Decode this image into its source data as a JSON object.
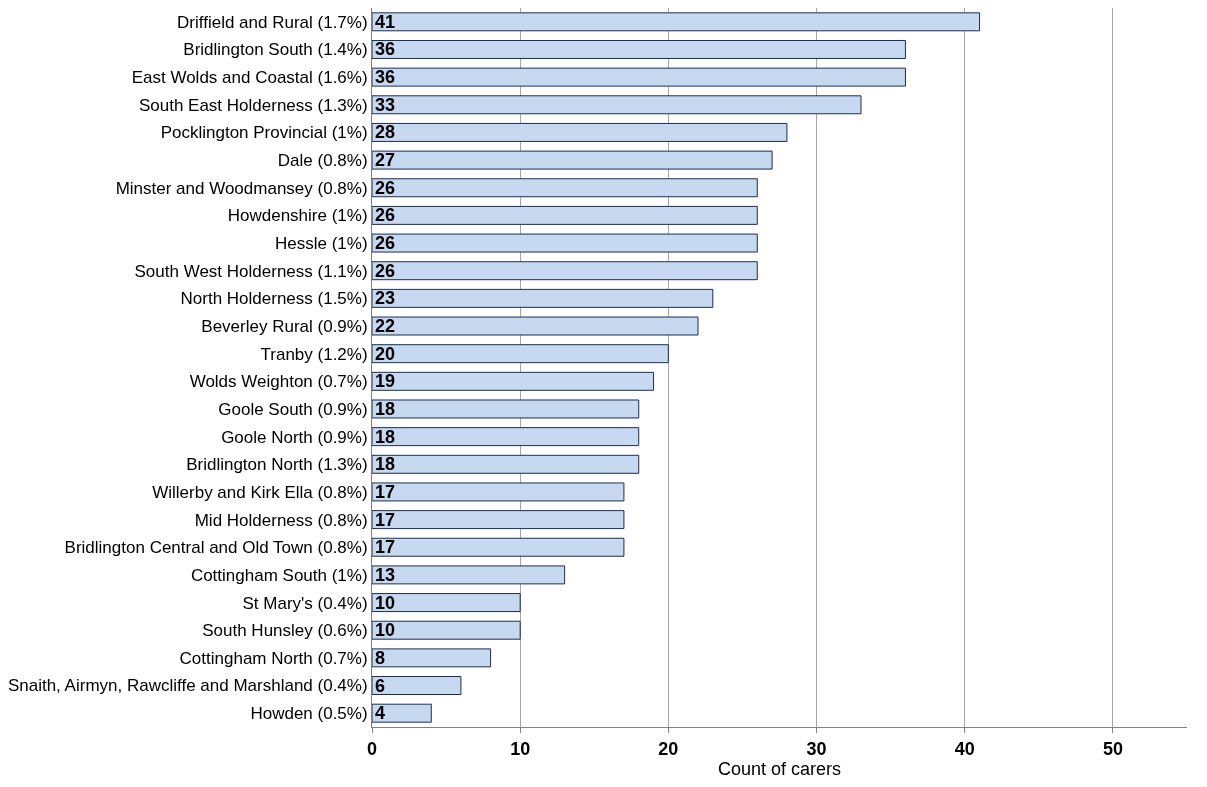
{
  "chart_data": {
    "type": "bar",
    "orientation": "horizontal",
    "xlabel": "Count of carers",
    "categories": [
      "Driffield and Rural (1.7%)",
      "Bridlington South (1.4%)",
      "East Wolds and Coastal (1.6%)",
      "South East Holderness (1.3%)",
      "Pocklington Provincial (1%)",
      "Dale (0.8%)",
      "Minster and Woodmansey (0.8%)",
      "Howdenshire (1%)",
      "Hessle (1%)",
      "South West Holderness (1.1%)",
      "North Holderness (1.5%)",
      "Beverley Rural (0.9%)",
      "Tranby (1.2%)",
      "Wolds Weighton (0.7%)",
      "Goole South (0.9%)",
      "Goole North (0.9%)",
      "Bridlington North (1.3%)",
      "Willerby and Kirk Ella (0.8%)",
      "Mid Holderness (0.8%)",
      "Bridlington Central and Old Town (0.8%)",
      "Cottingham South (1%)",
      "St Mary's (0.4%)",
      "South Hunsley (0.6%)",
      "Cottingham North (0.7%)",
      "Snaith, Airmyn, Rawcliffe and Marshland (0.4%)",
      "Howden (0.5%)"
    ],
    "values": [
      41,
      36,
      36,
      33,
      28,
      27,
      26,
      26,
      26,
      26,
      23,
      22,
      20,
      19,
      18,
      18,
      18,
      17,
      17,
      17,
      13,
      10,
      10,
      8,
      6,
      4
    ],
    "color": "#c6d9f1",
    "xlim": [
      0,
      55
    ],
    "xticks": [
      0,
      10,
      20,
      30,
      40,
      50
    ],
    "grid": "x",
    "data_labels": true
  }
}
